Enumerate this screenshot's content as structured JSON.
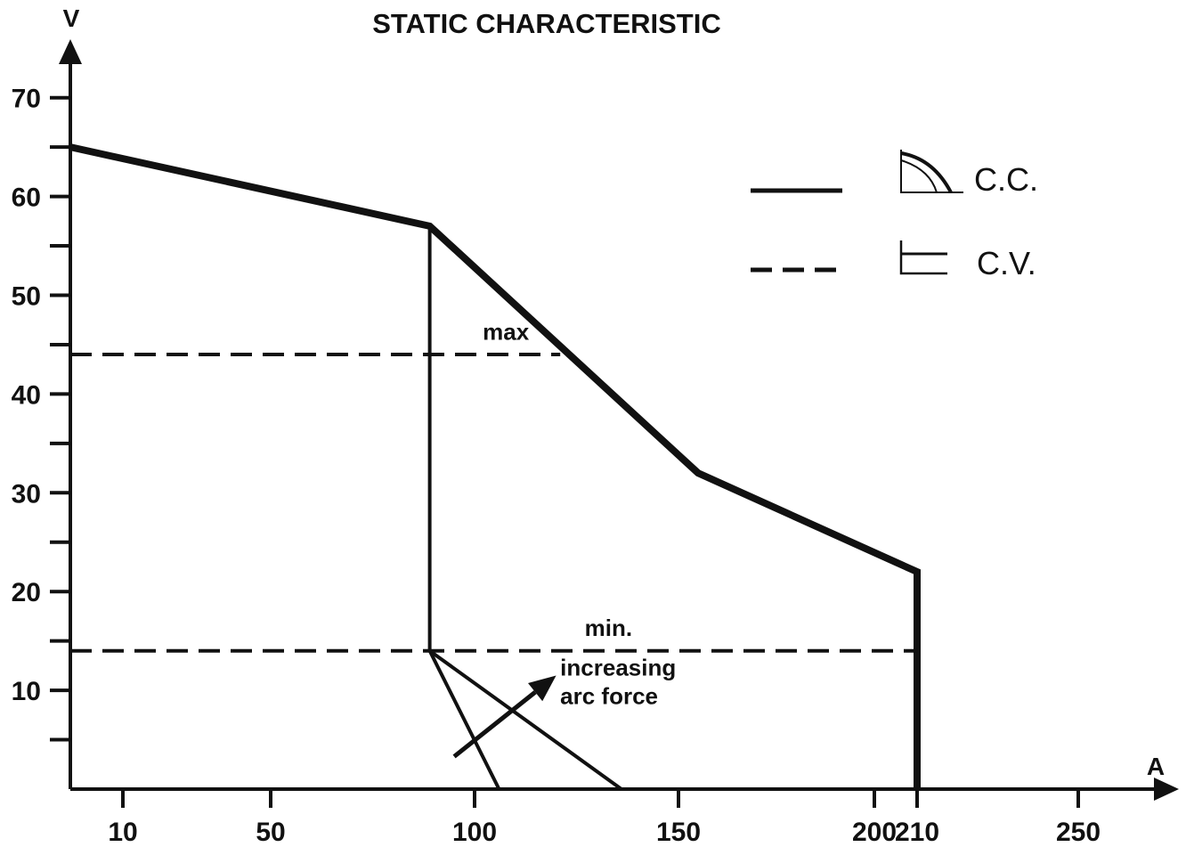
{
  "chart_data": {
    "type": "line",
    "title": "STATIC CHARACTERISTIC",
    "xlabel": "A",
    "ylabel": "V",
    "xlim": [
      0,
      270
    ],
    "ylim": [
      0,
      70
    ],
    "grid": false,
    "legend_position": "top-right",
    "x_ticks": [
      {
        "value": 10,
        "label": "10"
      },
      {
        "value": 50,
        "label": "50"
      },
      {
        "value": 100,
        "label": "100"
      },
      {
        "value": 150,
        "label": "150"
      },
      {
        "value": 200,
        "label": "200"
      },
      {
        "value": 210,
        "label": "210"
      },
      {
        "value": 250,
        "label": "250"
      }
    ],
    "y_ticks": [
      {
        "value": 10,
        "label": "10"
      },
      {
        "value": 20,
        "label": "20"
      },
      {
        "value": 30,
        "label": "30"
      },
      {
        "value": 40,
        "label": "40"
      },
      {
        "value": 50,
        "label": "50"
      },
      {
        "value": 60,
        "label": "60"
      },
      {
        "value": 70,
        "label": "70"
      }
    ],
    "y_minor_ticks": [
      5,
      15,
      25,
      35,
      45,
      55,
      65
    ],
    "series": [
      {
        "name": "C.C.",
        "style": "solid",
        "points": [
          [
            0,
            65
          ],
          [
            89,
            57
          ],
          [
            155,
            32
          ],
          [
            210,
            22
          ],
          [
            210,
            0
          ]
        ]
      },
      {
        "style": "solid-thin",
        "points": [
          [
            89,
            57
          ],
          [
            89,
            14
          ]
        ]
      },
      {
        "style": "solid-thin",
        "points": [
          [
            89,
            14
          ],
          [
            106,
            0
          ]
        ]
      },
      {
        "style": "solid-thin",
        "points": [
          [
            89,
            14
          ],
          [
            136,
            0
          ]
        ]
      },
      {
        "name": "C.V.",
        "style": "dashed",
        "points": [
          [
            0,
            44
          ],
          [
            121,
            44
          ]
        ]
      },
      {
        "style": "dashed",
        "points": [
          [
            0,
            14
          ],
          [
            210,
            14
          ]
        ]
      }
    ],
    "annotations": [
      {
        "text": "max",
        "x": 102,
        "y": 45.5
      },
      {
        "text": "min.",
        "x": 127,
        "y": 15.5
      },
      {
        "text": "increasing",
        "x": 121,
        "y": 11.5
      },
      {
        "text": "arc force",
        "x": 121,
        "y": 8.6
      }
    ],
    "arrow": {
      "from": [
        95,
        3.3
      ],
      "to": [
        120,
        11.5
      ]
    },
    "legend": [
      {
        "label": "C.C.",
        "style": "solid",
        "icon": "drooping-curve-icon"
      },
      {
        "label": "C.V.",
        "style": "dashed",
        "icon": "flat-curve-icon"
      }
    ]
  }
}
